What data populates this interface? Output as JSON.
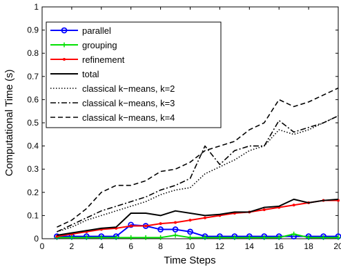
{
  "chart_data": {
    "type": "line",
    "title": "",
    "xlabel": "Time Steps",
    "ylabel": "Computational Time (s)",
    "xlim": [
      0,
      20
    ],
    "ylim": [
      0,
      1
    ],
    "xticks": [
      "0",
      "2",
      "4",
      "6",
      "8",
      "10",
      "12",
      "14",
      "16",
      "18",
      "20"
    ],
    "yticks": [
      "0",
      "0.1",
      "0.2",
      "0.3",
      "0.4",
      "0.5",
      "0.6",
      "0.7",
      "0.8",
      "0.9",
      "1"
    ],
    "grid": false,
    "legend_position": "top-left",
    "x": [
      1,
      2,
      3,
      4,
      5,
      6,
      7,
      8,
      9,
      10,
      11,
      12,
      13,
      14,
      15,
      16,
      17,
      18,
      19,
      20
    ],
    "series": [
      {
        "name": "parallel",
        "color": "#0000ff",
        "style": "solid",
        "marker": "circle",
        "values": [
          0.01,
          0.01,
          0.01,
          0.01,
          0.01,
          0.06,
          0.055,
          0.04,
          0.04,
          0.03,
          0.01,
          0.01,
          0.01,
          0.01,
          0.01,
          0.01,
          0.01,
          0.01,
          0.01,
          0.01
        ]
      },
      {
        "name": "grouping",
        "color": "#00e000",
        "style": "solid",
        "marker": "plus",
        "values": [
          0.005,
          0.005,
          0.005,
          0.005,
          0.005,
          0.005,
          0.005,
          0.005,
          0.015,
          0.005,
          0.005,
          0.005,
          0.005,
          0.005,
          0.005,
          0.005,
          0.02,
          0.005,
          0.005,
          0.005
        ]
      },
      {
        "name": "refinement",
        "color": "#ff0000",
        "style": "solid",
        "marker": "dot",
        "values": [
          0.01,
          0.02,
          0.03,
          0.04,
          0.045,
          0.055,
          0.055,
          0.065,
          0.07,
          0.08,
          0.09,
          0.1,
          0.11,
          0.115,
          0.125,
          0.135,
          0.145,
          0.155,
          0.165,
          0.165
        ]
      },
      {
        "name": "total",
        "color": "#000000",
        "style": "solid",
        "marker": "none",
        "values": [
          0.015,
          0.025,
          0.035,
          0.045,
          0.05,
          0.11,
          0.11,
          0.1,
          0.12,
          0.11,
          0.1,
          0.105,
          0.115,
          0.115,
          0.135,
          0.14,
          0.17,
          0.155,
          0.165,
          0.17
        ]
      },
      {
        "name": "classical k−means, k=2",
        "color": "#000000",
        "style": "dotted",
        "marker": "none",
        "values": [
          0.03,
          0.05,
          0.08,
          0.1,
          0.12,
          0.14,
          0.16,
          0.19,
          0.21,
          0.22,
          0.28,
          0.31,
          0.34,
          0.38,
          0.4,
          0.47,
          0.45,
          0.47,
          0.5,
          0.53
        ]
      },
      {
        "name": "classical k−means, k=3",
        "color": "#000000",
        "style": "dashdot",
        "marker": "none",
        "values": [
          0.03,
          0.06,
          0.09,
          0.12,
          0.14,
          0.16,
          0.18,
          0.21,
          0.23,
          0.26,
          0.4,
          0.32,
          0.38,
          0.4,
          0.4,
          0.51,
          0.46,
          0.48,
          0.5,
          0.53
        ]
      },
      {
        "name": "classical k−means, k=4",
        "color": "#000000",
        "style": "dashed",
        "marker": "none",
        "values": [
          0.05,
          0.08,
          0.13,
          0.2,
          0.23,
          0.23,
          0.25,
          0.29,
          0.3,
          0.33,
          0.38,
          0.4,
          0.42,
          0.47,
          0.5,
          0.6,
          0.57,
          0.59,
          0.62,
          0.65
        ]
      }
    ]
  }
}
